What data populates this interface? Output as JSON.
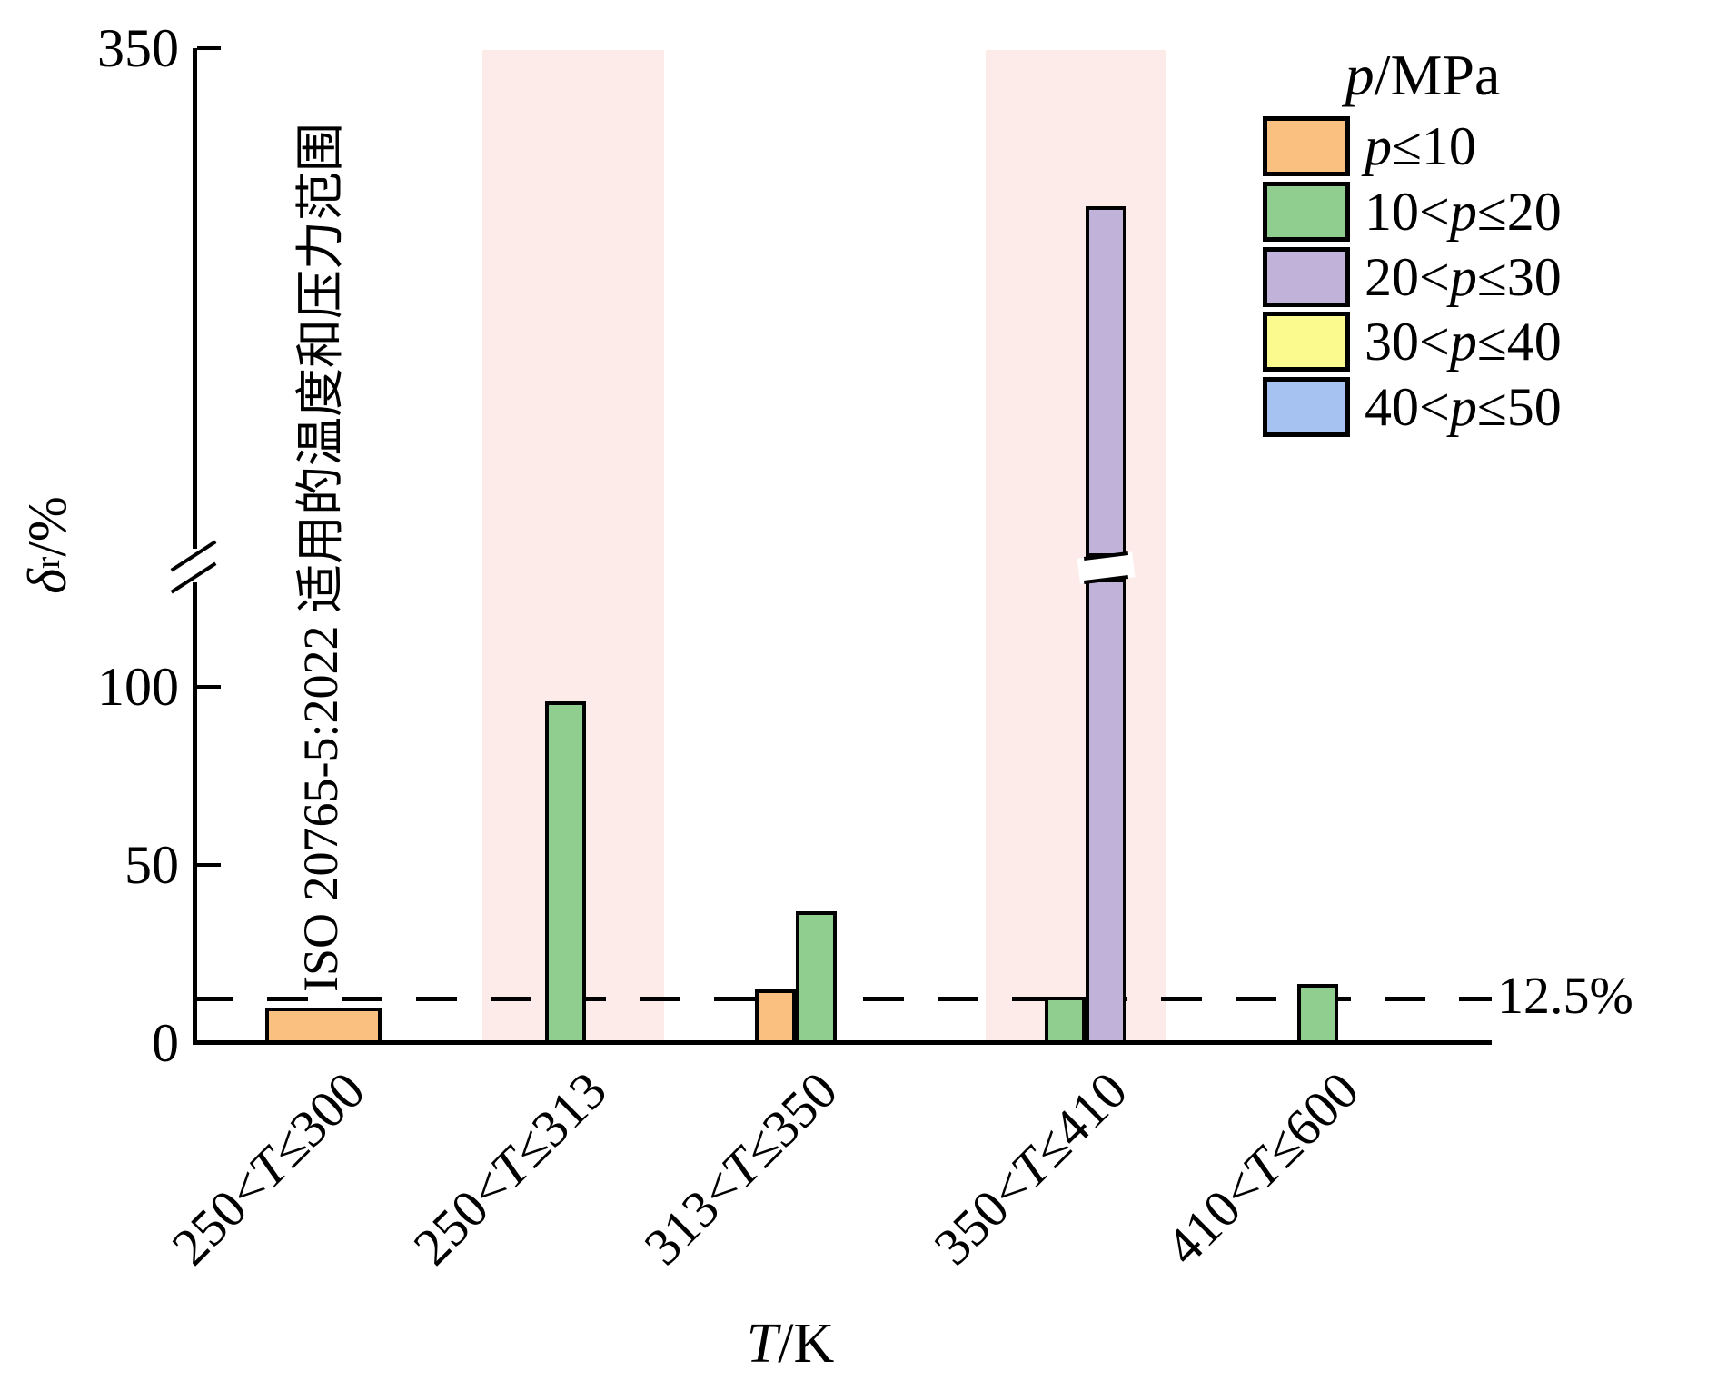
{
  "figure": {
    "background": "#FFFFFF"
  },
  "chart_data": {
    "type": "bar",
    "title": "",
    "xlabel_parts": {
      "var": "T",
      "rest": "/K"
    },
    "ylabel_parts": {
      "var": "δ",
      "sub": "r",
      "rest": "/%"
    },
    "legend_title_parts": {
      "var": "p",
      "rest": "/MPa"
    },
    "categories": [
      "250<T≤300",
      "250<T≤313",
      "313<T≤350",
      "350<T≤410",
      "410<T≤600"
    ],
    "series": [
      {
        "name": "p≤10",
        "color": "#FAC07F",
        "values": [
          10,
          null,
          15,
          null,
          null
        ]
      },
      {
        "name": "10<p≤20",
        "color": "#90CE90",
        "values": [
          null,
          96,
          37,
          13,
          16.5
        ]
      },
      {
        "name": "20<p≤30",
        "color": "#C0B2D8",
        "values": [
          null,
          null,
          null,
          285,
          null
        ]
      },
      {
        "name": "30<p≤40",
        "color": "#FAFA8E",
        "values": [
          null,
          null,
          null,
          null,
          null
        ]
      },
      {
        "name": "40<p≤50",
        "color": "#A5C2F0",
        "values": [
          null,
          null,
          null,
          null,
          null
        ]
      }
    ],
    "y_axis": {
      "lower_ticks": [
        0,
        50,
        100
      ],
      "upper_tick": 350,
      "axis_break": {
        "lower_value": 130,
        "upper_value": 350
      }
    },
    "reference_line": {
      "value": 12.5,
      "label": "12.5%",
      "style": "dashed"
    },
    "highlight_bands": {
      "category_indexes": [
        1,
        3
      ],
      "color": "#FCEBE9"
    },
    "annotation": "ISO 20765-5:2022 适用的温度和压力范围",
    "legend_position": "upper right",
    "grid": "off"
  }
}
